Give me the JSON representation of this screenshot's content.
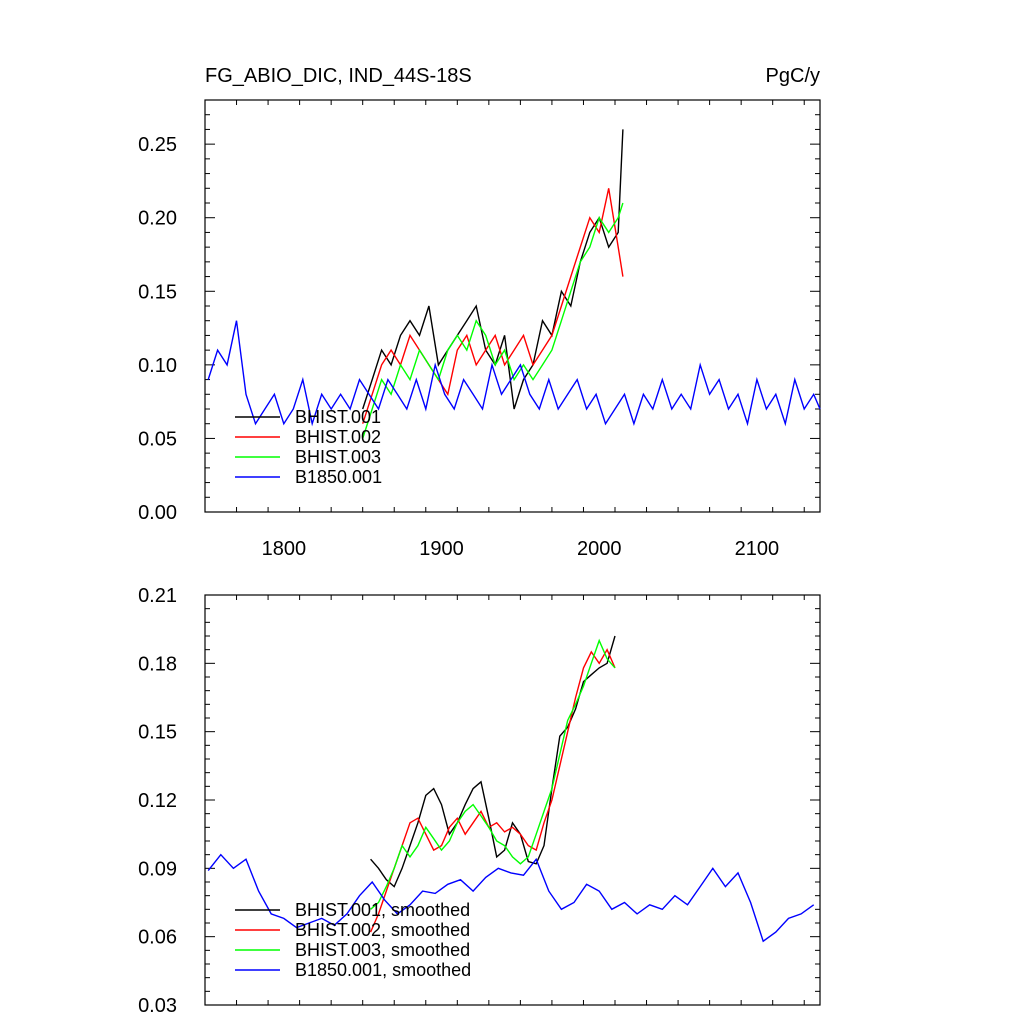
{
  "header": {
    "left_title": "FG_ABIO_DIC, IND_44S-18S",
    "right_title": "PgC/y"
  },
  "colors": {
    "BHIST.001": "#000000",
    "BHIST.002": "#ff0000",
    "BHIST.003": "#00ff00",
    "B1850.001": "#0000ff"
  },
  "chart_data": [
    {
      "type": "line",
      "title": "FG_ABIO_DIC, IND_44S-18S",
      "units": "PgC/y",
      "xlim": [
        1750,
        2140
      ],
      "ylim": [
        0.0,
        0.28
      ],
      "x_ticks": [
        1800,
        1900,
        2000,
        2100
      ],
      "x_tick_labels": [
        "1800",
        "1900",
        "2000",
        "2100"
      ],
      "y_ticks": [
        0.0,
        0.05,
        0.1,
        0.15,
        0.2,
        0.25
      ],
      "y_tick_labels": [
        "0.00",
        "0.05",
        "0.10",
        "0.15",
        "0.20",
        "0.25"
      ],
      "legend_position": "bottom-left",
      "series": [
        {
          "name": "BHIST.001",
          "x": [
            1850,
            1856,
            1862,
            1868,
            1874,
            1880,
            1886,
            1892,
            1898,
            1904,
            1910,
            1916,
            1922,
            1928,
            1934,
            1940,
            1946,
            1952,
            1958,
            1964,
            1970,
            1976,
            1982,
            1988,
            1994,
            2000,
            2006,
            2012,
            2015
          ],
          "y": [
            0.07,
            0.09,
            0.11,
            0.1,
            0.12,
            0.13,
            0.12,
            0.14,
            0.1,
            0.11,
            0.12,
            0.13,
            0.14,
            0.11,
            0.1,
            0.12,
            0.07,
            0.09,
            0.1,
            0.13,
            0.12,
            0.15,
            0.14,
            0.17,
            0.19,
            0.2,
            0.18,
            0.19,
            0.26
          ]
        },
        {
          "name": "BHIST.002",
          "x": [
            1850,
            1856,
            1862,
            1868,
            1874,
            1880,
            1886,
            1892,
            1898,
            1904,
            1910,
            1916,
            1922,
            1928,
            1934,
            1940,
            1946,
            1952,
            1958,
            1964,
            1970,
            1976,
            1982,
            1988,
            1994,
            2000,
            2006,
            2012,
            2015
          ],
          "y": [
            0.06,
            0.08,
            0.1,
            0.11,
            0.1,
            0.12,
            0.11,
            0.1,
            0.09,
            0.08,
            0.11,
            0.12,
            0.1,
            0.11,
            0.12,
            0.1,
            0.11,
            0.12,
            0.1,
            0.11,
            0.12,
            0.14,
            0.16,
            0.18,
            0.2,
            0.19,
            0.22,
            0.18,
            0.16
          ]
        },
        {
          "name": "BHIST.003",
          "x": [
            1850,
            1856,
            1862,
            1868,
            1874,
            1880,
            1886,
            1892,
            1898,
            1904,
            1910,
            1916,
            1922,
            1928,
            1934,
            1940,
            1946,
            1952,
            1958,
            1964,
            1970,
            1976,
            1982,
            1988,
            1994,
            2000,
            2006,
            2012,
            2015
          ],
          "y": [
            0.05,
            0.07,
            0.09,
            0.08,
            0.1,
            0.09,
            0.11,
            0.1,
            0.09,
            0.11,
            0.12,
            0.11,
            0.13,
            0.12,
            0.1,
            0.11,
            0.09,
            0.1,
            0.09,
            0.1,
            0.11,
            0.13,
            0.15,
            0.17,
            0.18,
            0.2,
            0.19,
            0.2,
            0.21
          ]
        },
        {
          "name": "B1850.001",
          "x": [
            1752,
            1758,
            1764,
            1770,
            1776,
            1782,
            1788,
            1794,
            1800,
            1806,
            1812,
            1818,
            1824,
            1830,
            1836,
            1842,
            1848,
            1854,
            1860,
            1866,
            1872,
            1878,
            1884,
            1890,
            1896,
            1902,
            1908,
            1914,
            1920,
            1926,
            1932,
            1938,
            1944,
            1950,
            1956,
            1962,
            1968,
            1974,
            1980,
            1986,
            1992,
            1998,
            2004,
            2010,
            2016,
            2022,
            2028,
            2034,
            2040,
            2046,
            2052,
            2058,
            2064,
            2070,
            2076,
            2082,
            2088,
            2094,
            2100,
            2106,
            2112,
            2118,
            2124,
            2130,
            2136,
            2140
          ],
          "y": [
            0.09,
            0.11,
            0.1,
            0.13,
            0.08,
            0.06,
            0.07,
            0.08,
            0.06,
            0.07,
            0.09,
            0.06,
            0.08,
            0.07,
            0.08,
            0.07,
            0.09,
            0.08,
            0.07,
            0.09,
            0.08,
            0.07,
            0.09,
            0.07,
            0.1,
            0.08,
            0.07,
            0.09,
            0.08,
            0.07,
            0.1,
            0.08,
            0.09,
            0.1,
            0.08,
            0.07,
            0.09,
            0.07,
            0.08,
            0.09,
            0.07,
            0.08,
            0.06,
            0.07,
            0.08,
            0.06,
            0.08,
            0.07,
            0.09,
            0.07,
            0.08,
            0.07,
            0.1,
            0.08,
            0.09,
            0.07,
            0.08,
            0.06,
            0.09,
            0.07,
            0.08,
            0.06,
            0.09,
            0.07,
            0.08,
            0.07
          ]
        }
      ]
    },
    {
      "type": "line",
      "xlim": [
        1750,
        2140
      ],
      "ylim": [
        0.03,
        0.21
      ],
      "x_ticks": [
        1800,
        1900,
        2000,
        2100
      ],
      "y_ticks": [
        0.03,
        0.06,
        0.09,
        0.12,
        0.15,
        0.18,
        0.21
      ],
      "y_tick_labels": [
        "0.03",
        "0.06",
        "0.09",
        "0.12",
        "0.15",
        "0.18",
        "0.21"
      ],
      "legend_position": "bottom-left",
      "series": [
        {
          "name": "BHIST.001, smoothed",
          "x": [
            1855,
            1860,
            1865,
            1870,
            1875,
            1880,
            1885,
            1890,
            1895,
            1900,
            1905,
            1910,
            1915,
            1920,
            1925,
            1930,
            1935,
            1940,
            1945,
            1950,
            1955,
            1960,
            1965,
            1970,
            1975,
            1980,
            1985,
            1990,
            1995,
            2000,
            2005,
            2010
          ],
          "y": [
            0.094,
            0.09,
            0.085,
            0.082,
            0.09,
            0.1,
            0.11,
            0.122,
            0.125,
            0.118,
            0.105,
            0.11,
            0.118,
            0.125,
            0.128,
            0.112,
            0.095,
            0.098,
            0.11,
            0.105,
            0.093,
            0.092,
            0.1,
            0.125,
            0.148,
            0.152,
            0.16,
            0.172,
            0.175,
            0.178,
            0.18,
            0.192
          ]
        },
        {
          "name": "BHIST.002, smoothed",
          "x": [
            1855,
            1860,
            1865,
            1870,
            1875,
            1880,
            1885,
            1890,
            1895,
            1900,
            1905,
            1910,
            1915,
            1920,
            1925,
            1930,
            1935,
            1940,
            1945,
            1950,
            1955,
            1960,
            1965,
            1970,
            1975,
            1980,
            1985,
            1990,
            1995,
            2000,
            2005,
            2010
          ],
          "y": [
            0.062,
            0.07,
            0.08,
            0.09,
            0.1,
            0.11,
            0.112,
            0.105,
            0.098,
            0.1,
            0.108,
            0.112,
            0.105,
            0.11,
            0.115,
            0.108,
            0.11,
            0.106,
            0.108,
            0.105,
            0.1,
            0.098,
            0.11,
            0.12,
            0.135,
            0.15,
            0.165,
            0.178,
            0.185,
            0.18,
            0.186,
            0.178
          ]
        },
        {
          "name": "BHIST.003, smoothed",
          "x": [
            1855,
            1860,
            1865,
            1870,
            1875,
            1880,
            1885,
            1890,
            1895,
            1900,
            1905,
            1910,
            1915,
            1920,
            1925,
            1930,
            1935,
            1940,
            1945,
            1950,
            1955,
            1960,
            1965,
            1970,
            1975,
            1980,
            1985,
            1990,
            1995,
            2000,
            2005,
            2010
          ],
          "y": [
            0.072,
            0.075,
            0.082,
            0.09,
            0.1,
            0.095,
            0.1,
            0.108,
            0.103,
            0.098,
            0.102,
            0.11,
            0.115,
            0.118,
            0.113,
            0.108,
            0.102,
            0.1,
            0.095,
            0.092,
            0.095,
            0.105,
            0.115,
            0.125,
            0.14,
            0.155,
            0.162,
            0.17,
            0.18,
            0.19,
            0.182,
            0.178
          ]
        },
        {
          "name": "B1850.001, smoothed",
          "x": [
            1752,
            1760,
            1768,
            1776,
            1784,
            1792,
            1800,
            1808,
            1816,
            1824,
            1832,
            1840,
            1848,
            1856,
            1864,
            1872,
            1880,
            1888,
            1896,
            1904,
            1912,
            1920,
            1928,
            1936,
            1944,
            1952,
            1960,
            1968,
            1976,
            1984,
            1992,
            2000,
            2008,
            2016,
            2024,
            2032,
            2040,
            2048,
            2056,
            2064,
            2072,
            2080,
            2088,
            2096,
            2104,
            2112,
            2120,
            2128,
            2136
          ],
          "y": [
            0.089,
            0.096,
            0.09,
            0.094,
            0.08,
            0.07,
            0.068,
            0.064,
            0.066,
            0.068,
            0.065,
            0.07,
            0.078,
            0.084,
            0.076,
            0.07,
            0.074,
            0.08,
            0.079,
            0.083,
            0.085,
            0.08,
            0.086,
            0.09,
            0.088,
            0.087,
            0.094,
            0.08,
            0.072,
            0.075,
            0.083,
            0.08,
            0.072,
            0.075,
            0.07,
            0.074,
            0.072,
            0.078,
            0.074,
            0.082,
            0.09,
            0.082,
            0.088,
            0.075,
            0.058,
            0.062,
            0.068,
            0.07,
            0.074
          ]
        }
      ]
    }
  ]
}
